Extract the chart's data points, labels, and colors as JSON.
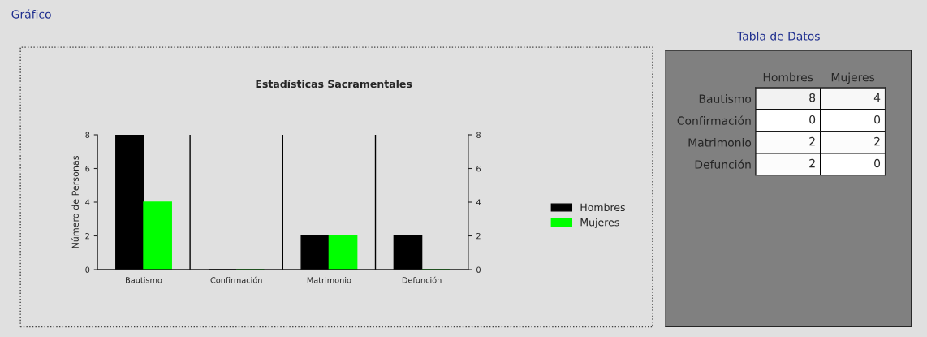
{
  "chart_data": [
    {
      "type": "bar",
      "title": "Estadísticas Sacramentales",
      "ylabel": "Número de Personas",
      "categories": [
        "Bautismo",
        "Confirmación",
        "Matrimonio",
        "Defunción"
      ],
      "series": [
        {
          "name": "Hombres",
          "color": "#000000",
          "values": [
            8,
            0,
            2,
            2
          ]
        },
        {
          "name": "Mujeres",
          "color": "#00ff00",
          "values": [
            4,
            0,
            2,
            0
          ]
        }
      ],
      "ylim": [
        0,
        8
      ],
      "yticks": [
        0,
        2,
        4,
        6,
        8
      ],
      "y2lim": [
        0,
        8
      ],
      "y2ticks": [
        0,
        2,
        4,
        6,
        8
      ],
      "grid": "x",
      "legend": "right",
      "annotations": [
        "Gráfico"
      ]
    },
    {
      "type": "heatmap",
      "title": "Tabla de Datos",
      "categories": [
        "Hombres",
        "Mujeres"
      ],
      "y_categories": [
        "Bautismo",
        "Confirmación",
        "Matrimonio",
        "Defunción"
      ],
      "cells": [
        [
          8,
          4
        ],
        [
          0,
          0
        ],
        [
          2,
          2
        ],
        [
          2,
          0
        ]
      ],
      "cell_labels": [
        [
          "8",
          "4"
        ],
        [
          "0",
          "0"
        ],
        [
          "2",
          "2"
        ],
        [
          "2",
          "0"
        ]
      ]
    }
  ]
}
